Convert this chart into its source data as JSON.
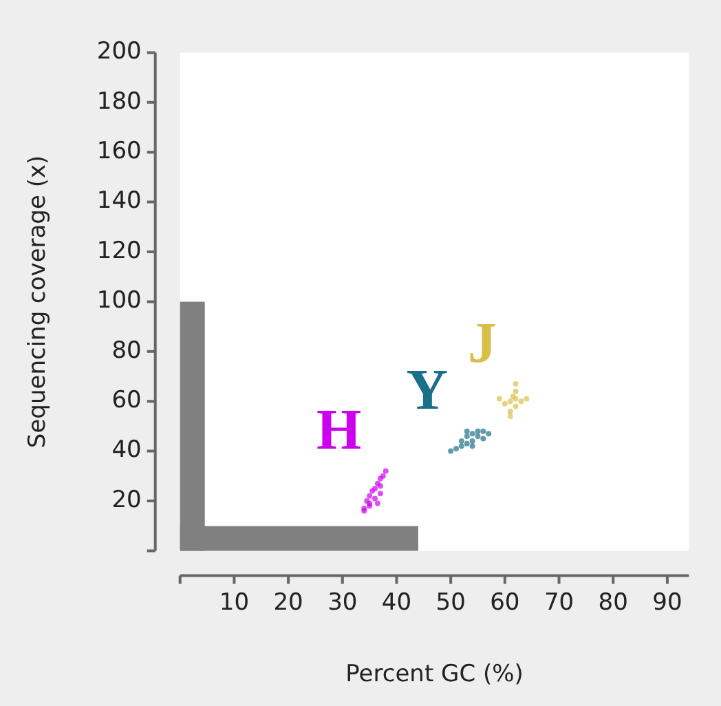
{
  "chart_data": {
    "type": "scatter",
    "xlabel": "Percent GC (%)",
    "ylabel": "Sequencing coverage (x)",
    "xlim": [
      0,
      94
    ],
    "ylim": [
      0,
      200
    ],
    "xticks": [
      {
        "value": 0,
        "label": null
      },
      10,
      20,
      30,
      40,
      50,
      60,
      70,
      80,
      90
    ],
    "yticks": [
      {
        "value": 0,
        "label": null
      },
      20,
      40,
      60,
      80,
      100,
      120,
      140,
      160,
      180,
      200
    ],
    "grid": false,
    "legend": false,
    "marker": "circle",
    "bands": [
      {
        "axis": "y",
        "from": 0,
        "to": 100,
        "color": "#808080"
      },
      {
        "axis": "x",
        "from": 0,
        "to": 44,
        "color": "#808080"
      }
    ],
    "series": [
      {
        "name": "H",
        "color": "#cc00ee",
        "x": [
          34,
          35,
          34.5,
          35,
          35.5,
          36,
          36,
          36.5,
          37,
          37,
          37.5,
          38,
          35,
          36.5,
          34,
          37
        ],
        "values": [
          17,
          18,
          20,
          22,
          24,
          21,
          25,
          27,
          23,
          29,
          30,
          32,
          19,
          19,
          16,
          26
        ]
      },
      {
        "name": "Y",
        "color": "#1a7088",
        "x": [
          50,
          51,
          52,
          52,
          53,
          53,
          54,
          54,
          55,
          55,
          56,
          56,
          57,
          54,
          53
        ],
        "values": [
          40,
          41,
          42,
          44,
          43,
          46,
          47,
          44,
          48,
          46,
          48,
          45,
          47,
          42,
          48
        ]
      },
      {
        "name": "J",
        "color": "#d8c048",
        "x": [
          61,
          62,
          62,
          61.5,
          63,
          60,
          62,
          61,
          64,
          59,
          62,
          61
        ],
        "values": [
          60,
          61,
          58,
          62,
          60,
          59,
          64,
          56,
          61,
          61,
          67,
          54
        ]
      }
    ]
  }
}
